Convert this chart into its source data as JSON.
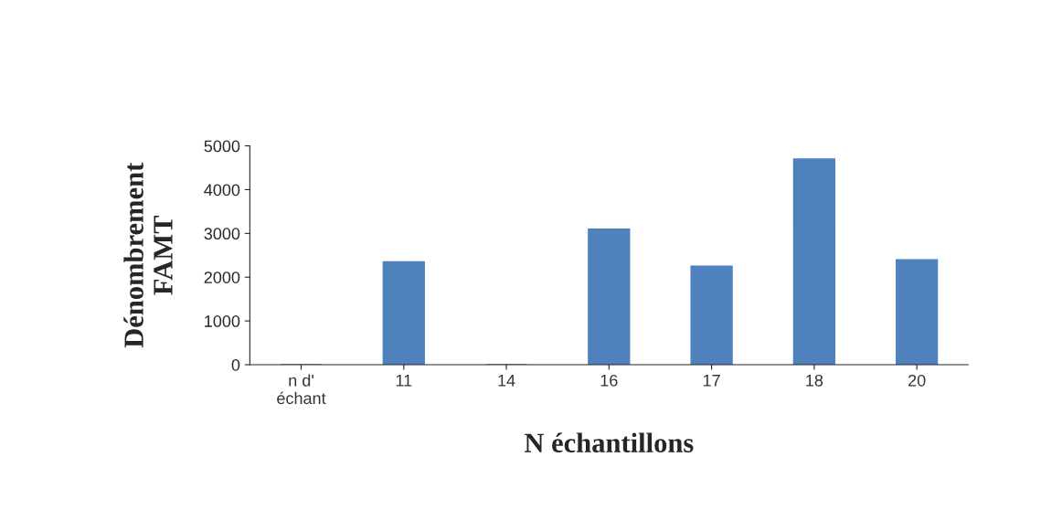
{
  "chart_data": {
    "type": "bar",
    "xlabel": "N échantillons",
    "ylabel": "Dénombrement\nFAMT",
    "categories": [
      "n d'\néchant",
      "11",
      "14",
      "16",
      "17",
      "18",
      "20"
    ],
    "values": [
      0,
      2350,
      0,
      3100,
      2250,
      4700,
      2400
    ],
    "color": "#4f81bd",
    "ylim": [
      0,
      5000
    ],
    "yticks": [
      0,
      1000,
      2000,
      3000,
      4000,
      5000
    ],
    "grid": false
  }
}
